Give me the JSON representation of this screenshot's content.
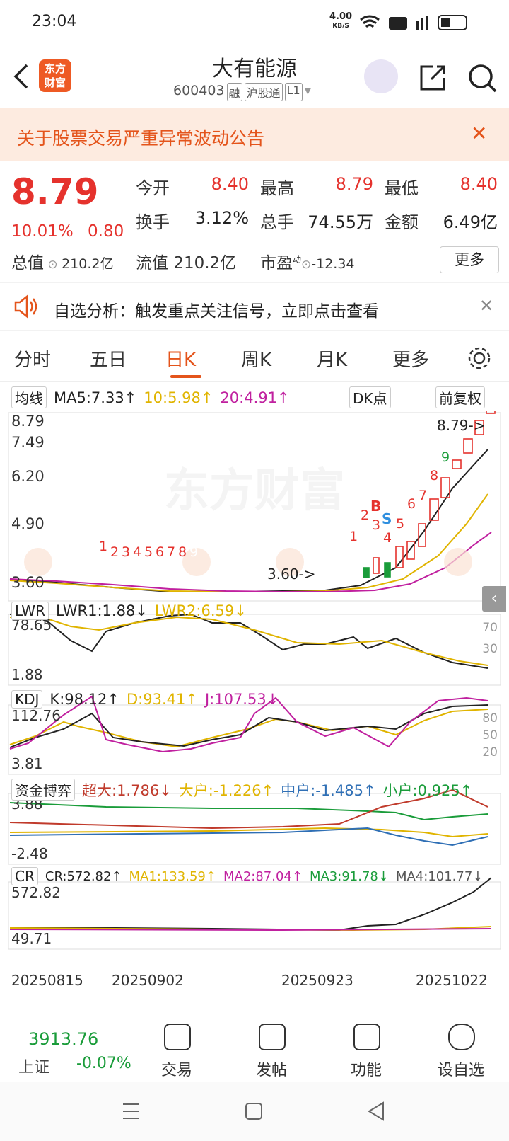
{
  "status": {
    "time": "23:04",
    "speed": "4.00",
    "speed_unit": "KB/S"
  },
  "header": {
    "logo": [
      "东方",
      "财富"
    ],
    "name": "大有能源",
    "code": "600403",
    "tags": [
      "融",
      "沪股通",
      "L1"
    ]
  },
  "notice": "关于股票交易严重异常波动公告",
  "quote": {
    "price": "8.79",
    "change_pct": "10.01%",
    "change": "0.80",
    "fields": [
      {
        "label": "今开",
        "value": "8.40"
      },
      {
        "label": "最高",
        "value": "8.79"
      },
      {
        "label": "最低",
        "value": "8.40"
      },
      {
        "label": "换手",
        "value": "3.12%"
      },
      {
        "label": "总手",
        "value": "74.55万"
      },
      {
        "label": "金额",
        "value": "6.49亿"
      }
    ],
    "total": {
      "label": "总值",
      "value": "210.2亿"
    },
    "float": {
      "label": "流值",
      "value": "210.2亿"
    },
    "pe": {
      "label": "市盈",
      "sup": "动",
      "value": "-12.34"
    },
    "more": "更多"
  },
  "analysis": "自选分析：触发重点关注信号，立即点击查看",
  "tabs": [
    "分时",
    "五日",
    "日K",
    "周K",
    "月K",
    "更多"
  ],
  "ma": {
    "selector": "均线",
    "items": [
      "MA5:7.33↑",
      "10:5.98↑",
      "20:4.91↑"
    ],
    "dk": "DK点",
    "fq": "前复权"
  },
  "main": {
    "watermark": "东方财富",
    "ylabels": [
      "8.79",
      "7.49",
      "6.20",
      "4.90",
      "3.60"
    ],
    "last": "8.79->",
    "low": "3.60->",
    "seq_left": [
      "1",
      "2",
      "3",
      "4",
      "5",
      "6",
      "7",
      "8",
      "9"
    ],
    "seq_right": [
      "1",
      "2",
      "3",
      "4",
      "5",
      "6",
      "7",
      "8",
      "9"
    ],
    "buy": "B",
    "sell": "S"
  },
  "panels": [
    {
      "selector": "LWR",
      "items": [
        "LWR1:1.88↓",
        "LWR2:6.59↓"
      ],
      "left": [
        "78.65",
        "1.88"
      ],
      "right": [
        "70",
        "30"
      ]
    },
    {
      "selector": "KDJ",
      "items": [
        "K:98.12↑",
        "D:93.41↑",
        "J:107.53↓"
      ],
      "left": [
        "112.76",
        "3.81"
      ],
      "right": [
        "80",
        "50",
        "20"
      ]
    },
    {
      "selector": "资金博弈",
      "items": [
        "超大:1.786↓",
        "大户:-1.226↑",
        "中户:-1.485↑",
        "小户:0.925↑"
      ],
      "left": [
        "3.88",
        "-2.48"
      ],
      "right": []
    },
    {
      "selector": "CR",
      "items": [
        "CR:572.82↑",
        "MA1:133.59↑",
        "MA2:87.04↑",
        "MA3:91.78↓",
        "MA4:101.77↓"
      ],
      "left": [
        "572.82",
        "49.71"
      ],
      "right": []
    }
  ],
  "dates": [
    "20250815",
    "20250902",
    "20250923",
    "20251022"
  ],
  "bottom": {
    "index_value": "3913.76",
    "index_name": "上证",
    "index_change": "-0.07%",
    "nav": [
      "交易",
      "发帖",
      "功能",
      "设自选"
    ]
  }
}
